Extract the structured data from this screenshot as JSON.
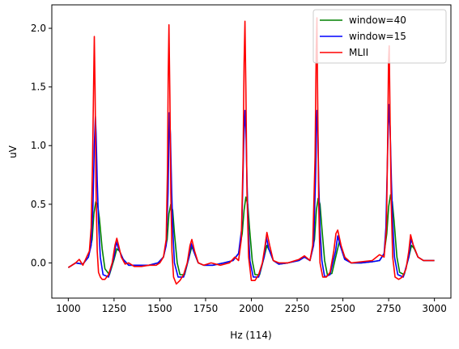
{
  "chart_data": {
    "type": "line",
    "xlabel": "Hz (114)",
    "ylabel": "uV",
    "xlim": [
      910,
      3090
    ],
    "ylim": [
      -0.3,
      2.2
    ],
    "xticks": [
      1000,
      1250,
      1500,
      1750,
      2000,
      2250,
      2500,
      2750,
      3000
    ],
    "xtick_labels": [
      "1000",
      "1250",
      "1500",
      "1750",
      "2000",
      "2250",
      "2500",
      "2750",
      "3000"
    ],
    "yticks": [
      0.0,
      0.5,
      1.0,
      1.5,
      2.0
    ],
    "ytick_labels": [
      "0.0",
      "0.5",
      "1.0",
      "1.5",
      "2.0"
    ],
    "grid": false,
    "legend_position": "top-right",
    "series": [
      {
        "name": "window=40",
        "color": "#008000",
        "x": [
          1000,
          1040,
          1080,
          1110,
          1130,
          1140,
          1150,
          1160,
          1170,
          1185,
          1200,
          1225,
          1250,
          1265,
          1280,
          1300,
          1330,
          1380,
          1440,
          1490,
          1520,
          1540,
          1550,
          1560,
          1570,
          1580,
          1595,
          1610,
          1635,
          1660,
          1675,
          1690,
          1710,
          1740,
          1790,
          1850,
          1900,
          1930,
          1950,
          1960,
          1970,
          1980,
          1990,
          2005,
          2020,
          2045,
          2070,
          2085,
          2100,
          2120,
          2150,
          2200,
          2260,
          2290,
          2320,
          2345,
          2355,
          2365,
          2375,
          2385,
          2400,
          2415,
          2440,
          2465,
          2480,
          2495,
          2515,
          2545,
          2600,
          2660,
          2700,
          2725,
          2740,
          2750,
          2760,
          2770,
          2780,
          2795,
          2810,
          2835,
          2860,
          2875,
          2890,
          2910,
          2940,
          3000
        ],
        "values": [
          -0.04,
          0.0,
          -0.01,
          0.05,
          0.2,
          0.42,
          0.52,
          0.5,
          0.38,
          0.12,
          -0.05,
          -0.1,
          0.03,
          0.12,
          0.1,
          0.03,
          -0.02,
          -0.02,
          -0.02,
          0.0,
          0.05,
          0.2,
          0.42,
          0.5,
          0.45,
          0.25,
          0.0,
          -0.1,
          -0.1,
          0.05,
          0.14,
          0.08,
          0.0,
          -0.02,
          -0.02,
          0.0,
          0.02,
          0.08,
          0.25,
          0.45,
          0.56,
          0.5,
          0.3,
          0.02,
          -0.1,
          -0.1,
          0.05,
          0.15,
          0.1,
          0.02,
          -0.01,
          0.0,
          0.02,
          0.05,
          0.02,
          0.2,
          0.45,
          0.55,
          0.5,
          0.3,
          0.02,
          -0.1,
          -0.09,
          0.08,
          0.18,
          0.12,
          0.03,
          0.0,
          0.0,
          0.01,
          0.02,
          0.08,
          0.25,
          0.48,
          0.58,
          0.52,
          0.35,
          0.05,
          -0.08,
          -0.1,
          0.05,
          0.15,
          0.12,
          0.05,
          0.02,
          0.02
        ]
      },
      {
        "name": "window=15",
        "color": "#0000ff",
        "x": [
          1000,
          1040,
          1080,
          1110,
          1125,
          1135,
          1142,
          1148,
          1152,
          1158,
          1165,
          1175,
          1190,
          1220,
          1250,
          1262,
          1275,
          1300,
          1330,
          1380,
          1440,
          1490,
          1520,
          1535,
          1545,
          1552,
          1558,
          1565,
          1572,
          1580,
          1600,
          1630,
          1660,
          1670,
          1685,
          1710,
          1740,
          1790,
          1850,
          1900,
          1930,
          1948,
          1958,
          1965,
          1970,
          1976,
          1983,
          1992,
          2010,
          2040,
          2070,
          2082,
          2095,
          2120,
          2150,
          2200,
          2260,
          2290,
          2320,
          2340,
          2350,
          2358,
          2363,
          2368,
          2375,
          2385,
          2400,
          2430,
          2460,
          2472,
          2485,
          2510,
          2545,
          2600,
          2660,
          2700,
          2725,
          2735,
          2745,
          2752,
          2758,
          2765,
          2772,
          2782,
          2800,
          2830,
          2860,
          2872,
          2885,
          2910,
          2940,
          3000
        ],
        "values": [
          -0.04,
          0.0,
          -0.01,
          0.05,
          0.15,
          0.5,
          1.0,
          1.25,
          1.1,
          0.7,
          0.35,
          0.05,
          -0.1,
          -0.12,
          0.05,
          0.18,
          0.12,
          0.03,
          -0.02,
          -0.02,
          -0.02,
          0.0,
          0.05,
          0.15,
          0.6,
          1.28,
          1.1,
          0.6,
          0.25,
          0.0,
          -0.12,
          -0.12,
          0.05,
          0.17,
          0.1,
          0.0,
          -0.02,
          -0.02,
          0.0,
          0.02,
          0.08,
          0.3,
          1.0,
          1.3,
          1.15,
          0.7,
          0.3,
          0.02,
          -0.12,
          -0.12,
          0.05,
          0.22,
          0.12,
          0.02,
          -0.01,
          0.0,
          0.02,
          0.05,
          0.02,
          0.15,
          0.7,
          1.3,
          1.15,
          0.7,
          0.3,
          0.02,
          -0.12,
          -0.1,
          0.1,
          0.23,
          0.15,
          0.03,
          0.0,
          0.0,
          0.01,
          0.02,
          0.08,
          0.3,
          1.0,
          1.35,
          1.15,
          0.7,
          0.35,
          0.05,
          -0.1,
          -0.12,
          0.05,
          0.2,
          0.15,
          0.05,
          0.02,
          0.02
        ]
      },
      {
        "name": "MLII",
        "color": "#ff0000",
        "x": [
          1000,
          1020,
          1040,
          1060,
          1080,
          1100,
          1115,
          1125,
          1132,
          1138,
          1142,
          1146,
          1152,
          1158,
          1165,
          1175,
          1185,
          1200,
          1220,
          1240,
          1255,
          1265,
          1275,
          1290,
          1310,
          1330,
          1360,
          1400,
          1440,
          1480,
          1500,
          1520,
          1535,
          1542,
          1546,
          1550,
          1555,
          1560,
          1566,
          1575,
          1590,
          1610,
          1630,
          1650,
          1665,
          1675,
          1690,
          1710,
          1740,
          1780,
          1830,
          1880,
          1910,
          1930,
          1945,
          1955,
          1960,
          1965,
          1970,
          1976,
          1985,
          2000,
          2020,
          2040,
          2060,
          2075,
          2085,
          2100,
          2120,
          2150,
          2200,
          2260,
          2290,
          2320,
          2335,
          2348,
          2354,
          2358,
          2362,
          2368,
          2375,
          2390,
          2410,
          2430,
          2450,
          2462,
          2472,
          2490,
          2510,
          2545,
          2600,
          2660,
          2700,
          2725,
          2738,
          2744,
          2749,
          2753,
          2758,
          2764,
          2772,
          2785,
          2805,
          2825,
          2845,
          2860,
          2870,
          2885,
          2910,
          2940,
          3000
        ],
        "values": [
          -0.04,
          -0.02,
          0.0,
          0.03,
          -0.02,
          0.05,
          0.1,
          0.3,
          0.8,
          1.5,
          1.93,
          1.5,
          0.6,
          0.1,
          -0.08,
          -0.12,
          -0.14,
          -0.14,
          -0.1,
          0.0,
          0.15,
          0.21,
          0.15,
          0.05,
          -0.01,
          0.0,
          -0.03,
          -0.03,
          -0.02,
          -0.02,
          0.0,
          0.05,
          0.2,
          0.8,
          1.6,
          2.03,
          1.4,
          0.6,
          0.1,
          -0.12,
          -0.18,
          -0.15,
          -0.1,
          0.0,
          0.15,
          0.2,
          0.1,
          0.0,
          -0.02,
          0.0,
          -0.02,
          0.0,
          0.05,
          0.02,
          0.2,
          0.9,
          1.7,
          2.06,
          1.5,
          0.6,
          0.05,
          -0.15,
          -0.15,
          -0.1,
          0.0,
          0.15,
          0.26,
          0.15,
          0.02,
          0.0,
          0.0,
          0.03,
          0.06,
          0.02,
          0.15,
          0.9,
          1.8,
          2.09,
          1.4,
          0.5,
          0.0,
          -0.12,
          -0.12,
          -0.08,
          0.1,
          0.25,
          0.28,
          0.15,
          0.05,
          0.0,
          0.01,
          0.02,
          0.07,
          0.05,
          0.3,
          1.0,
          1.7,
          1.85,
          1.2,
          0.5,
          0.05,
          -0.12,
          -0.14,
          -0.12,
          -0.05,
          0.1,
          0.24,
          0.15,
          0.05,
          0.02,
          0.02
        ]
      }
    ]
  }
}
